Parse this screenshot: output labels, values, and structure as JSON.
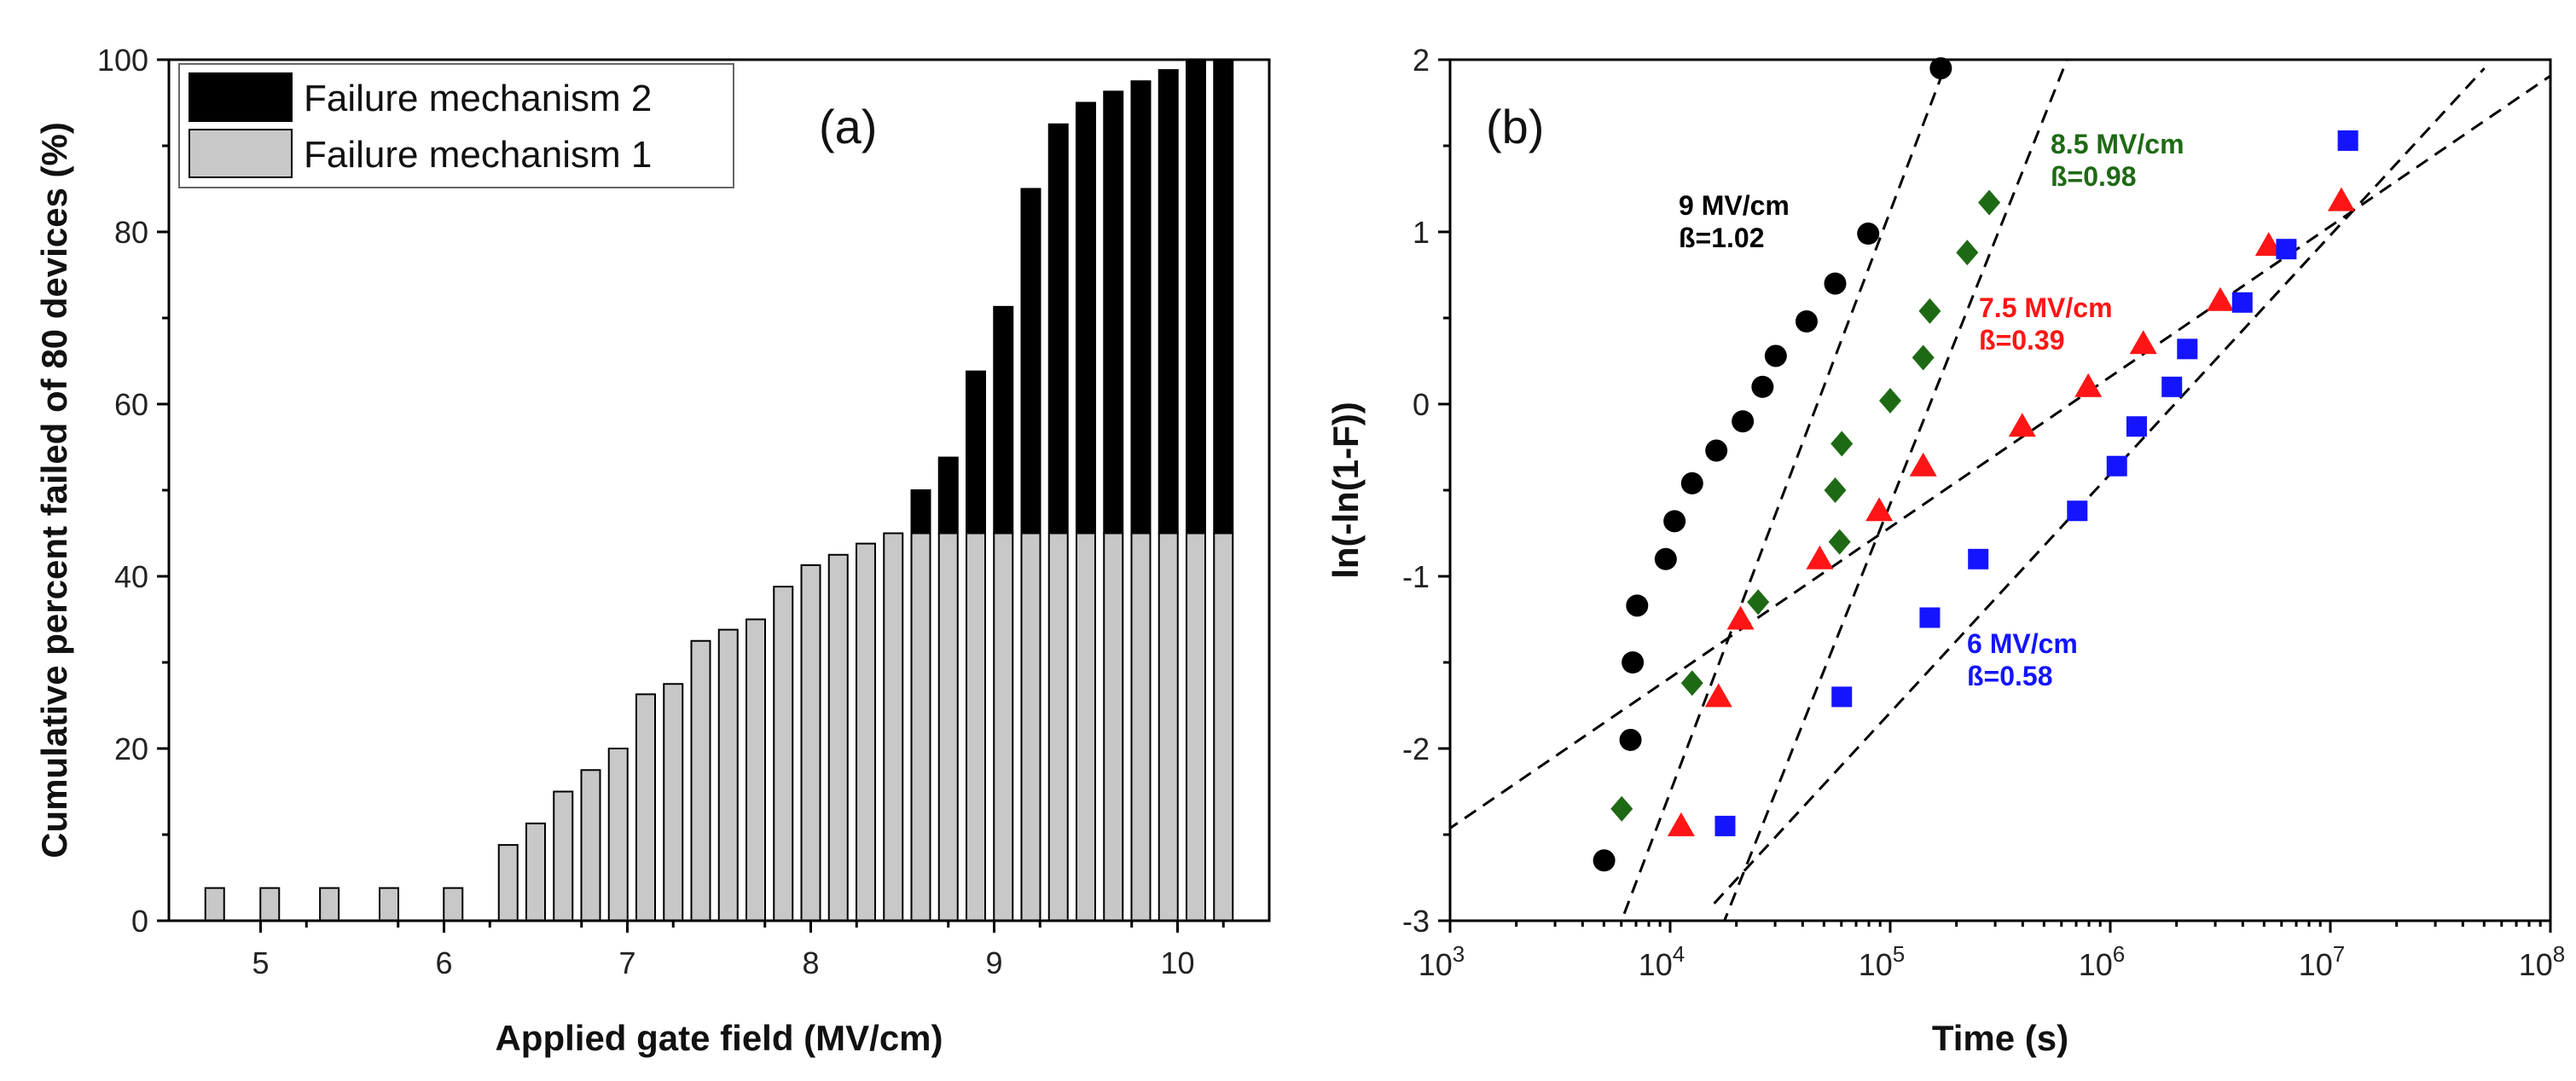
{
  "chart_data": [
    {
      "type": "bar",
      "stacked": true,
      "panel_label": "(a)",
      "xlabel": "Applied gate field (MV/cm)",
      "ylabel": "Cumulative percent failed of 80 devices (%)",
      "xlim": [
        4.5,
        10.5
      ],
      "ylim": [
        0,
        100
      ],
      "xticks": [
        5,
        6,
        7,
        8,
        9,
        10
      ],
      "yticks": [
        0,
        20,
        40,
        60,
        80,
        100
      ],
      "legend": {
        "position": "top-left",
        "entries": [
          {
            "label": "Failure mechanism 2",
            "color": "#000000"
          },
          {
            "label": "Failure mechanism 1",
            "color": "#c8c8c8"
          }
        ]
      },
      "x": [
        4.75,
        5.05,
        5.375,
        5.7,
        6.05,
        6.35,
        6.5,
        6.65,
        6.8,
        6.95,
        7.1,
        7.25,
        7.4,
        7.55,
        7.7,
        7.85,
        8.0,
        8.15,
        8.3,
        8.45,
        8.6,
        8.75,
        8.9,
        9.05,
        9.2,
        9.35,
        9.5,
        9.65,
        9.8,
        9.95,
        10.1,
        10.25
      ],
      "series": [
        {
          "name": "Failure mechanism 1",
          "color": "#c8c8c8",
          "values": [
            3.8,
            3.8,
            3.8,
            3.8,
            3.8,
            8.8,
            11.3,
            15.0,
            17.5,
            20.0,
            26.3,
            27.5,
            32.5,
            33.8,
            35.0,
            38.8,
            41.3,
            42.5,
            43.8,
            45.0,
            45.0,
            45.0,
            45.0,
            45.0,
            45.0,
            45.0,
            45.0,
            45.0,
            45.0,
            45.0,
            45.0,
            45.0
          ]
        },
        {
          "name": "Failure mechanism 2",
          "color": "#000000",
          "values": [
            0,
            0,
            0,
            0,
            0,
            0,
            0,
            0,
            0,
            0,
            0,
            0,
            0,
            0,
            0,
            0,
            0,
            0,
            0,
            0,
            5.0,
            8.8,
            18.8,
            26.3,
            40.0,
            47.5,
            50.0,
            51.3,
            52.5,
            53.8,
            55.0,
            55.0
          ]
        }
      ]
    },
    {
      "type": "scatter",
      "panel_label": "(b)",
      "xlabel": "Time (s)",
      "ylabel": "ln(-ln(1-F))",
      "xscale": "log",
      "xlim_exp": [
        3,
        8
      ],
      "xtick_base": "10",
      "xtick_exps": [
        "3",
        "4",
        "5",
        "6",
        "7",
        "8"
      ],
      "ylim": [
        -3,
        2
      ],
      "yticks": [
        -3,
        -2,
        -1,
        0,
        1,
        2
      ],
      "series": [
        {
          "name": "9 MV/cm",
          "beta_label": "ß=1.02",
          "color": "#000000",
          "marker": "circle",
          "annotation": "right of the steepest fit line, upper-middle",
          "fit_log10": [
            [
              3.72,
              -3.2
            ],
            [
              5.35,
              2.3
            ]
          ],
          "points_log10": [
            [
              3.7,
              -2.65
            ],
            [
              3.82,
              -1.95
            ],
            [
              3.83,
              -1.5
            ],
            [
              3.85,
              -1.17
            ],
            [
              3.98,
              -0.9
            ],
            [
              4.02,
              -0.68
            ],
            [
              4.1,
              -0.46
            ],
            [
              4.21,
              -0.27
            ],
            [
              4.33,
              -0.1
            ],
            [
              4.42,
              0.1
            ],
            [
              4.48,
              0.28
            ],
            [
              4.62,
              0.48
            ],
            [
              4.75,
              0.7
            ],
            [
              4.9,
              0.99
            ],
            [
              5.23,
              1.95
            ]
          ]
        },
        {
          "name": "8.5 MV/cm",
          "beta_label": "ß=0.98",
          "color": "#1e6a14",
          "marker": "diamond",
          "annotation": "upper-middle, right of its fit line",
          "fit_log10": [
            [
              4.2,
              -3.15
            ],
            [
              5.85,
              2.15
            ]
          ],
          "points_log10": [
            [
              3.78,
              -2.35
            ],
            [
              4.1,
              -1.62
            ],
            [
              4.4,
              -1.15
            ],
            [
              4.77,
              -0.8
            ],
            [
              4.75,
              -0.5
            ],
            [
              4.78,
              -0.23
            ],
            [
              5.0,
              0.02
            ],
            [
              5.15,
              0.27
            ],
            [
              5.18,
              0.54
            ],
            [
              5.35,
              0.88
            ],
            [
              5.45,
              1.17
            ]
          ]
        },
        {
          "name": "7.5 MV/cm",
          "beta_label": "ß=0.39",
          "color": "#ff1515",
          "marker": "triangle",
          "annotation": "center-right, above its fit line",
          "fit_log10": [
            [
              2.9,
              -2.55
            ],
            [
              8.05,
              1.95
            ]
          ],
          "points_log10": [
            [
              4.05,
              -2.45
            ],
            [
              4.22,
              -1.7
            ],
            [
              4.32,
              -1.25
            ],
            [
              4.68,
              -0.9
            ],
            [
              4.95,
              -0.62
            ],
            [
              5.15,
              -0.36
            ],
            [
              5.6,
              -0.13
            ],
            [
              5.9,
              0.1
            ],
            [
              6.15,
              0.35
            ],
            [
              6.5,
              0.6
            ],
            [
              6.72,
              0.92
            ],
            [
              7.05,
              1.18
            ]
          ]
        },
        {
          "name": "6 MV/cm",
          "beta_label": "ß=0.58",
          "color": "#1414ff",
          "marker": "square",
          "annotation": "lower-middle, below its fit line",
          "fit_log10": [
            [
              4.2,
              -2.9
            ],
            [
              7.7,
              1.95
            ]
          ],
          "points_log10": [
            [
              4.25,
              -2.45
            ],
            [
              4.78,
              -1.7
            ],
            [
              5.18,
              -1.24
            ],
            [
              5.4,
              -0.9
            ],
            [
              5.85,
              -0.62
            ],
            [
              6.03,
              -0.36
            ],
            [
              6.12,
              -0.13
            ],
            [
              6.28,
              0.1
            ],
            [
              6.35,
              0.32
            ],
            [
              6.6,
              0.59
            ],
            [
              6.8,
              0.9
            ],
            [
              7.08,
              1.53
            ]
          ]
        }
      ]
    }
  ]
}
